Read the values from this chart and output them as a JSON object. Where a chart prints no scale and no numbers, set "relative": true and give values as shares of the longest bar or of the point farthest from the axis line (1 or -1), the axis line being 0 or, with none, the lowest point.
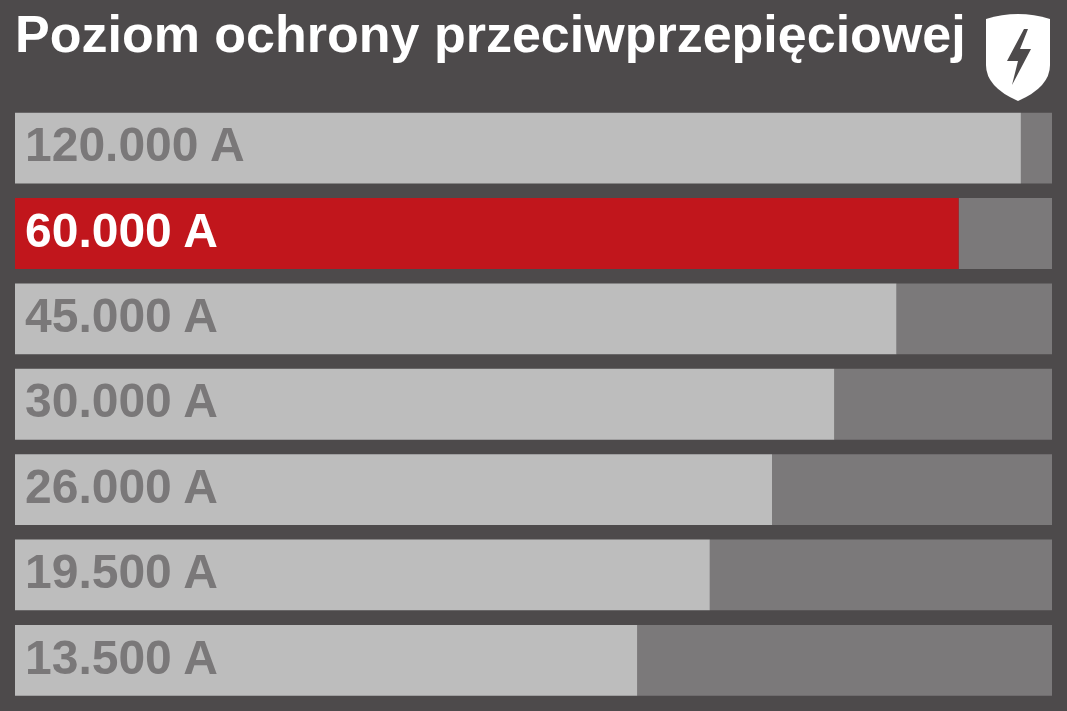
{
  "chart_data": {
    "type": "bar",
    "orientation": "horizontal",
    "stacked": true,
    "relative": true,
    "title": "Poziom ochrony przeciwprzepięciowej",
    "categories": [
      "120.000 A",
      "60.000 A",
      "45.000 A",
      "30.000 A",
      "26.000 A",
      "19.500 A",
      "13.500 A"
    ],
    "series": [
      {
        "colors": [
          "#bdbdbd",
          "#c1161c",
          "#bdbdbd",
          "#bdbdbd",
          "#bdbdbd",
          "#bdbdbd",
          "#bdbdbd"
        ],
        "values": [
          0.97,
          0.91,
          0.85,
          0.79,
          0.73,
          0.67,
          0.6
        ]
      },
      {
        "color": "#7b797a",
        "values": [
          0.03,
          0.09,
          0.15,
          0.21,
          0.27,
          0.33,
          0.4
        ]
      }
    ],
    "legend": false,
    "grid": false
  }
}
